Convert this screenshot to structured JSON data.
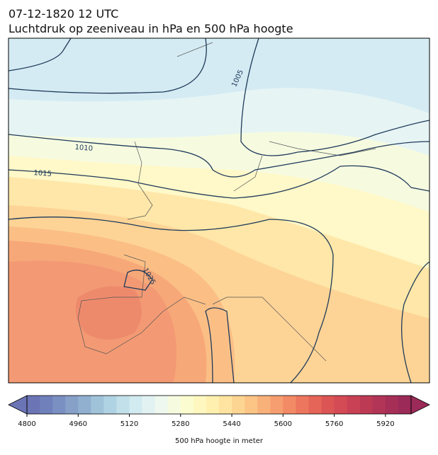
{
  "title": [
    "07-12-1820 12 UTC",
    "Luchtdruk op zeeniveau in hPa en 500 hPa hoogte"
  ],
  "contour_labels": [
    "1005",
    "1010",
    "1015",
    "1025"
  ],
  "colorbar": {
    "label": "500 hPa hoogte in meter",
    "lim": [
      4800,
      6000
    ],
    "ticks": [
      4800,
      4960,
      5120,
      5280,
      5440,
      5600,
      5760,
      5920
    ],
    "colors": [
      "#6b74b5",
      "#7080bb",
      "#7a8fc2",
      "#86a0c8",
      "#91b0d0",
      "#a0c3da",
      "#b0d3e3",
      "#c1e0ea",
      "#d2ebf0",
      "#e2f2f3",
      "#eef8ee",
      "#f6fbdf",
      "#fbfdd0",
      "#fef8c0",
      "#fff0b0",
      "#fee4a0",
      "#fdd592",
      "#fcc485",
      "#f9b17a",
      "#f69e70",
      "#f28a66",
      "#ed775e",
      "#e56558",
      "#dc5555",
      "#d44a55",
      "#c94155",
      "#bd3a55",
      "#b23457",
      "#a62f58",
      "#9b2a58"
    ]
  }
}
